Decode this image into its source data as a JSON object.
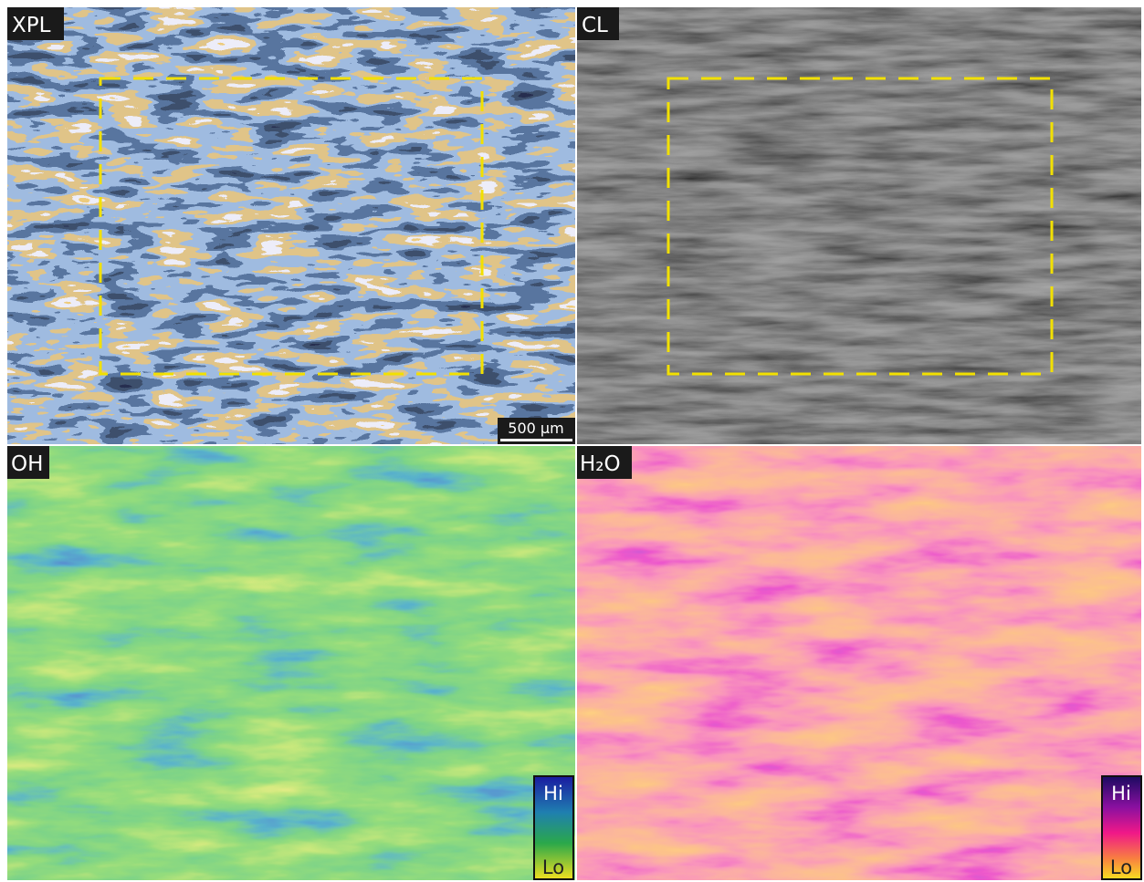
{
  "panels": [
    {
      "label": "XPL",
      "scale_bar": "500 µm"
    },
    {
      "label": "CL"
    },
    {
      "label": "OH",
      "colorbar": {
        "high": "Hi",
        "low": "Lo"
      }
    },
    {
      "label": "H₂O",
      "colorbar": {
        "high": "Hi",
        "low": "Lo"
      }
    }
  ]
}
